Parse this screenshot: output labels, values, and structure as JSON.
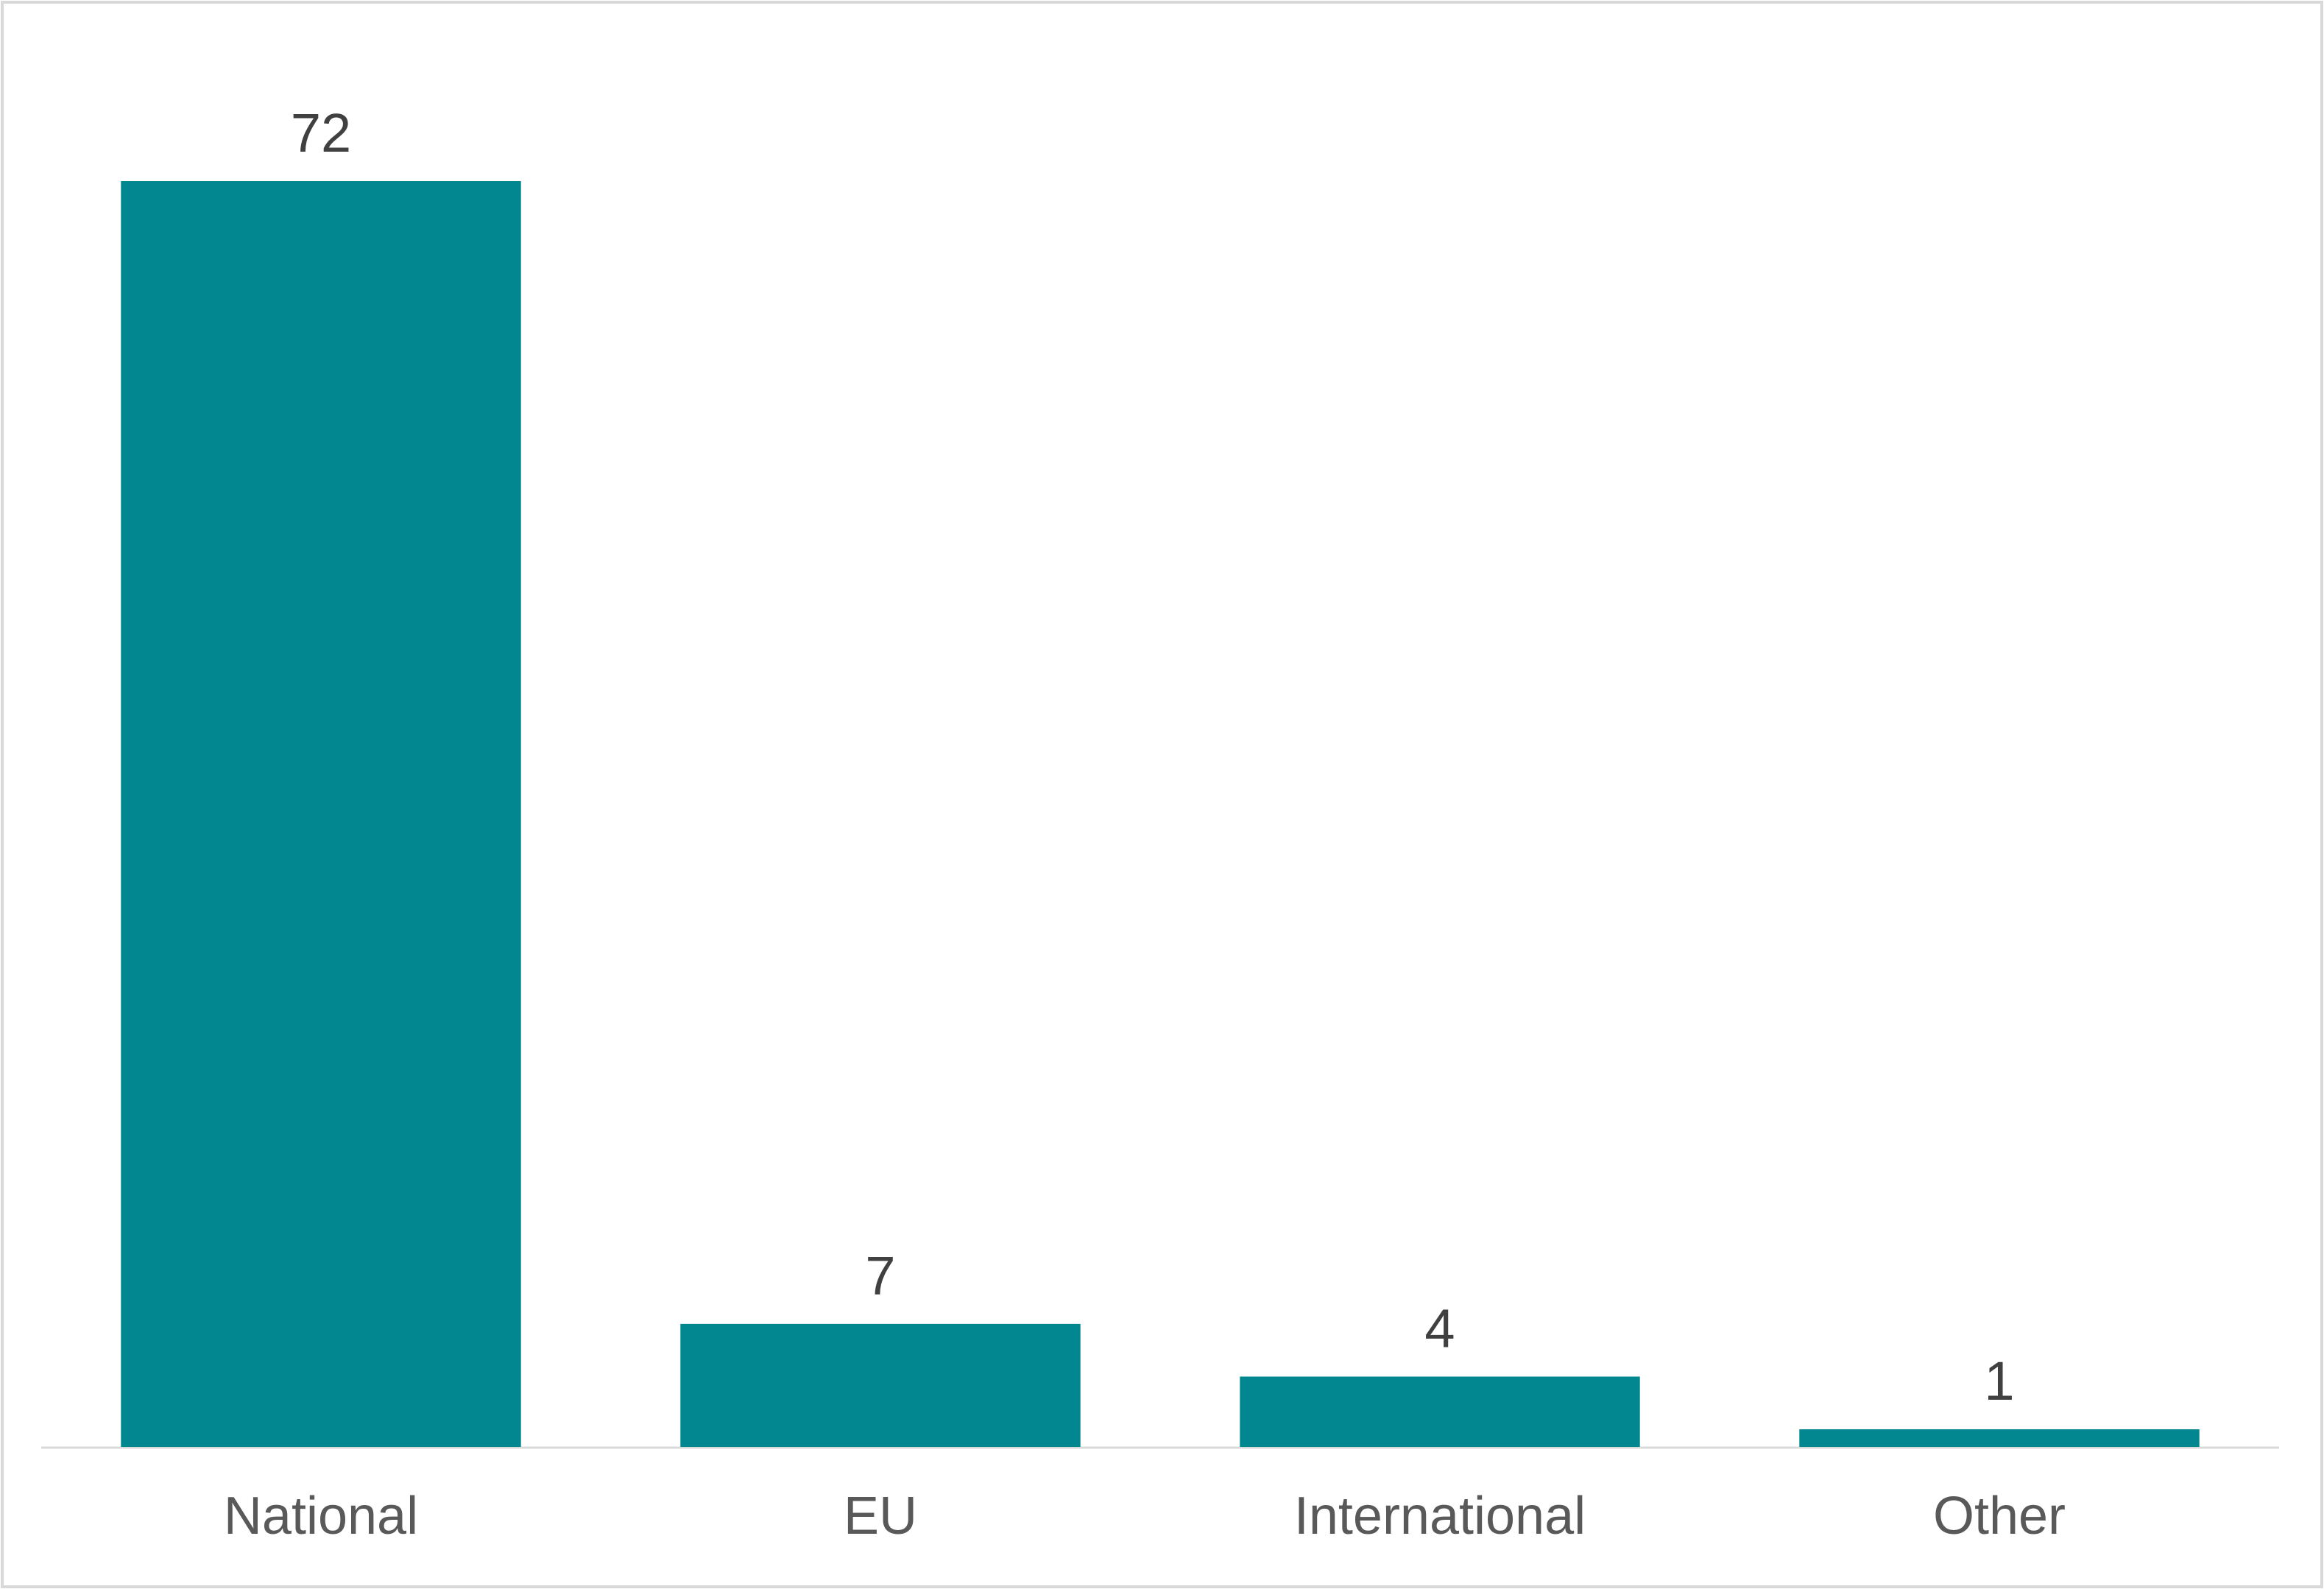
{
  "chart_data": {
    "type": "bar",
    "categories": [
      "National",
      "EU",
      "International",
      "Other"
    ],
    "values": [
      72,
      7,
      4,
      1
    ],
    "color": "#02868f"
  }
}
